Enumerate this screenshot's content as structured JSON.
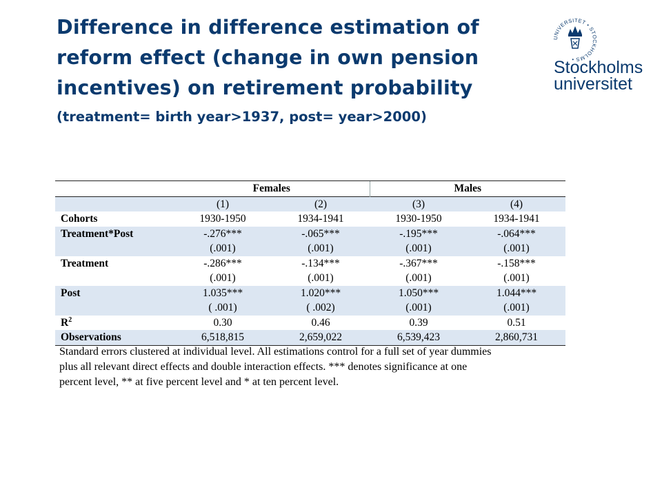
{
  "title_line1": "Difference in difference estimation of",
  "title_line2": "reform effect (change in own pension",
  "title_line3": "incentives) on retirement probability",
  "subtitle": "(treatment= birth year>1937, post= year>2000)",
  "logo": {
    "ring_text": "UNIVERSITET • STOCKHOLMS •",
    "line1": "Stockholms",
    "line2": "universitet"
  },
  "table": {
    "group_females": "Females",
    "group_males": "Males",
    "col_nums": [
      "(1)",
      "(2)",
      "(3)",
      "(4)"
    ],
    "cohorts_label": "Cohorts",
    "cohorts": [
      "1930-1950",
      "1934-1941",
      "1930-1950",
      "1934-1941"
    ],
    "tp_label": "Treatment*Post",
    "tp": [
      "-.276***",
      "-.065***",
      "-.195***",
      "-.064***"
    ],
    "tp_se": [
      "(.001)",
      "(.001)",
      "(.001)",
      "(.001)"
    ],
    "t_label": "Treatment",
    "t": [
      "-.286***",
      "-.134***",
      "-.367***",
      "-.158***"
    ],
    "t_se": [
      "(.001)",
      "(.001)",
      "(.001)",
      "(.001)"
    ],
    "p_label": "Post",
    "p": [
      "1.035***",
      "1.020***",
      "1.050***",
      "1.044***"
    ],
    "p_se": [
      "( .001)",
      "( .002)",
      "(.001)",
      "(.001)"
    ],
    "r2_label": "R",
    "r2_sup": "2",
    "r2": [
      "0.30",
      "0.46",
      "0.39",
      "0.51"
    ],
    "obs_label": "Observations",
    "obs": [
      "6,518,815",
      "2,659,022",
      "6,539,423",
      "2,860,731"
    ]
  },
  "note_line1": "Standard errors clustered at individual level. All estimations control for a full set of year dummies",
  "note_line2": "plus all relevant direct effects and double interaction effects. *** denotes significance at one",
  "note_line3": "percent level, ** at five percent level and * at ten percent level.",
  "colors": {
    "title": "#0b3a6e",
    "shade": "#dce6f2"
  }
}
